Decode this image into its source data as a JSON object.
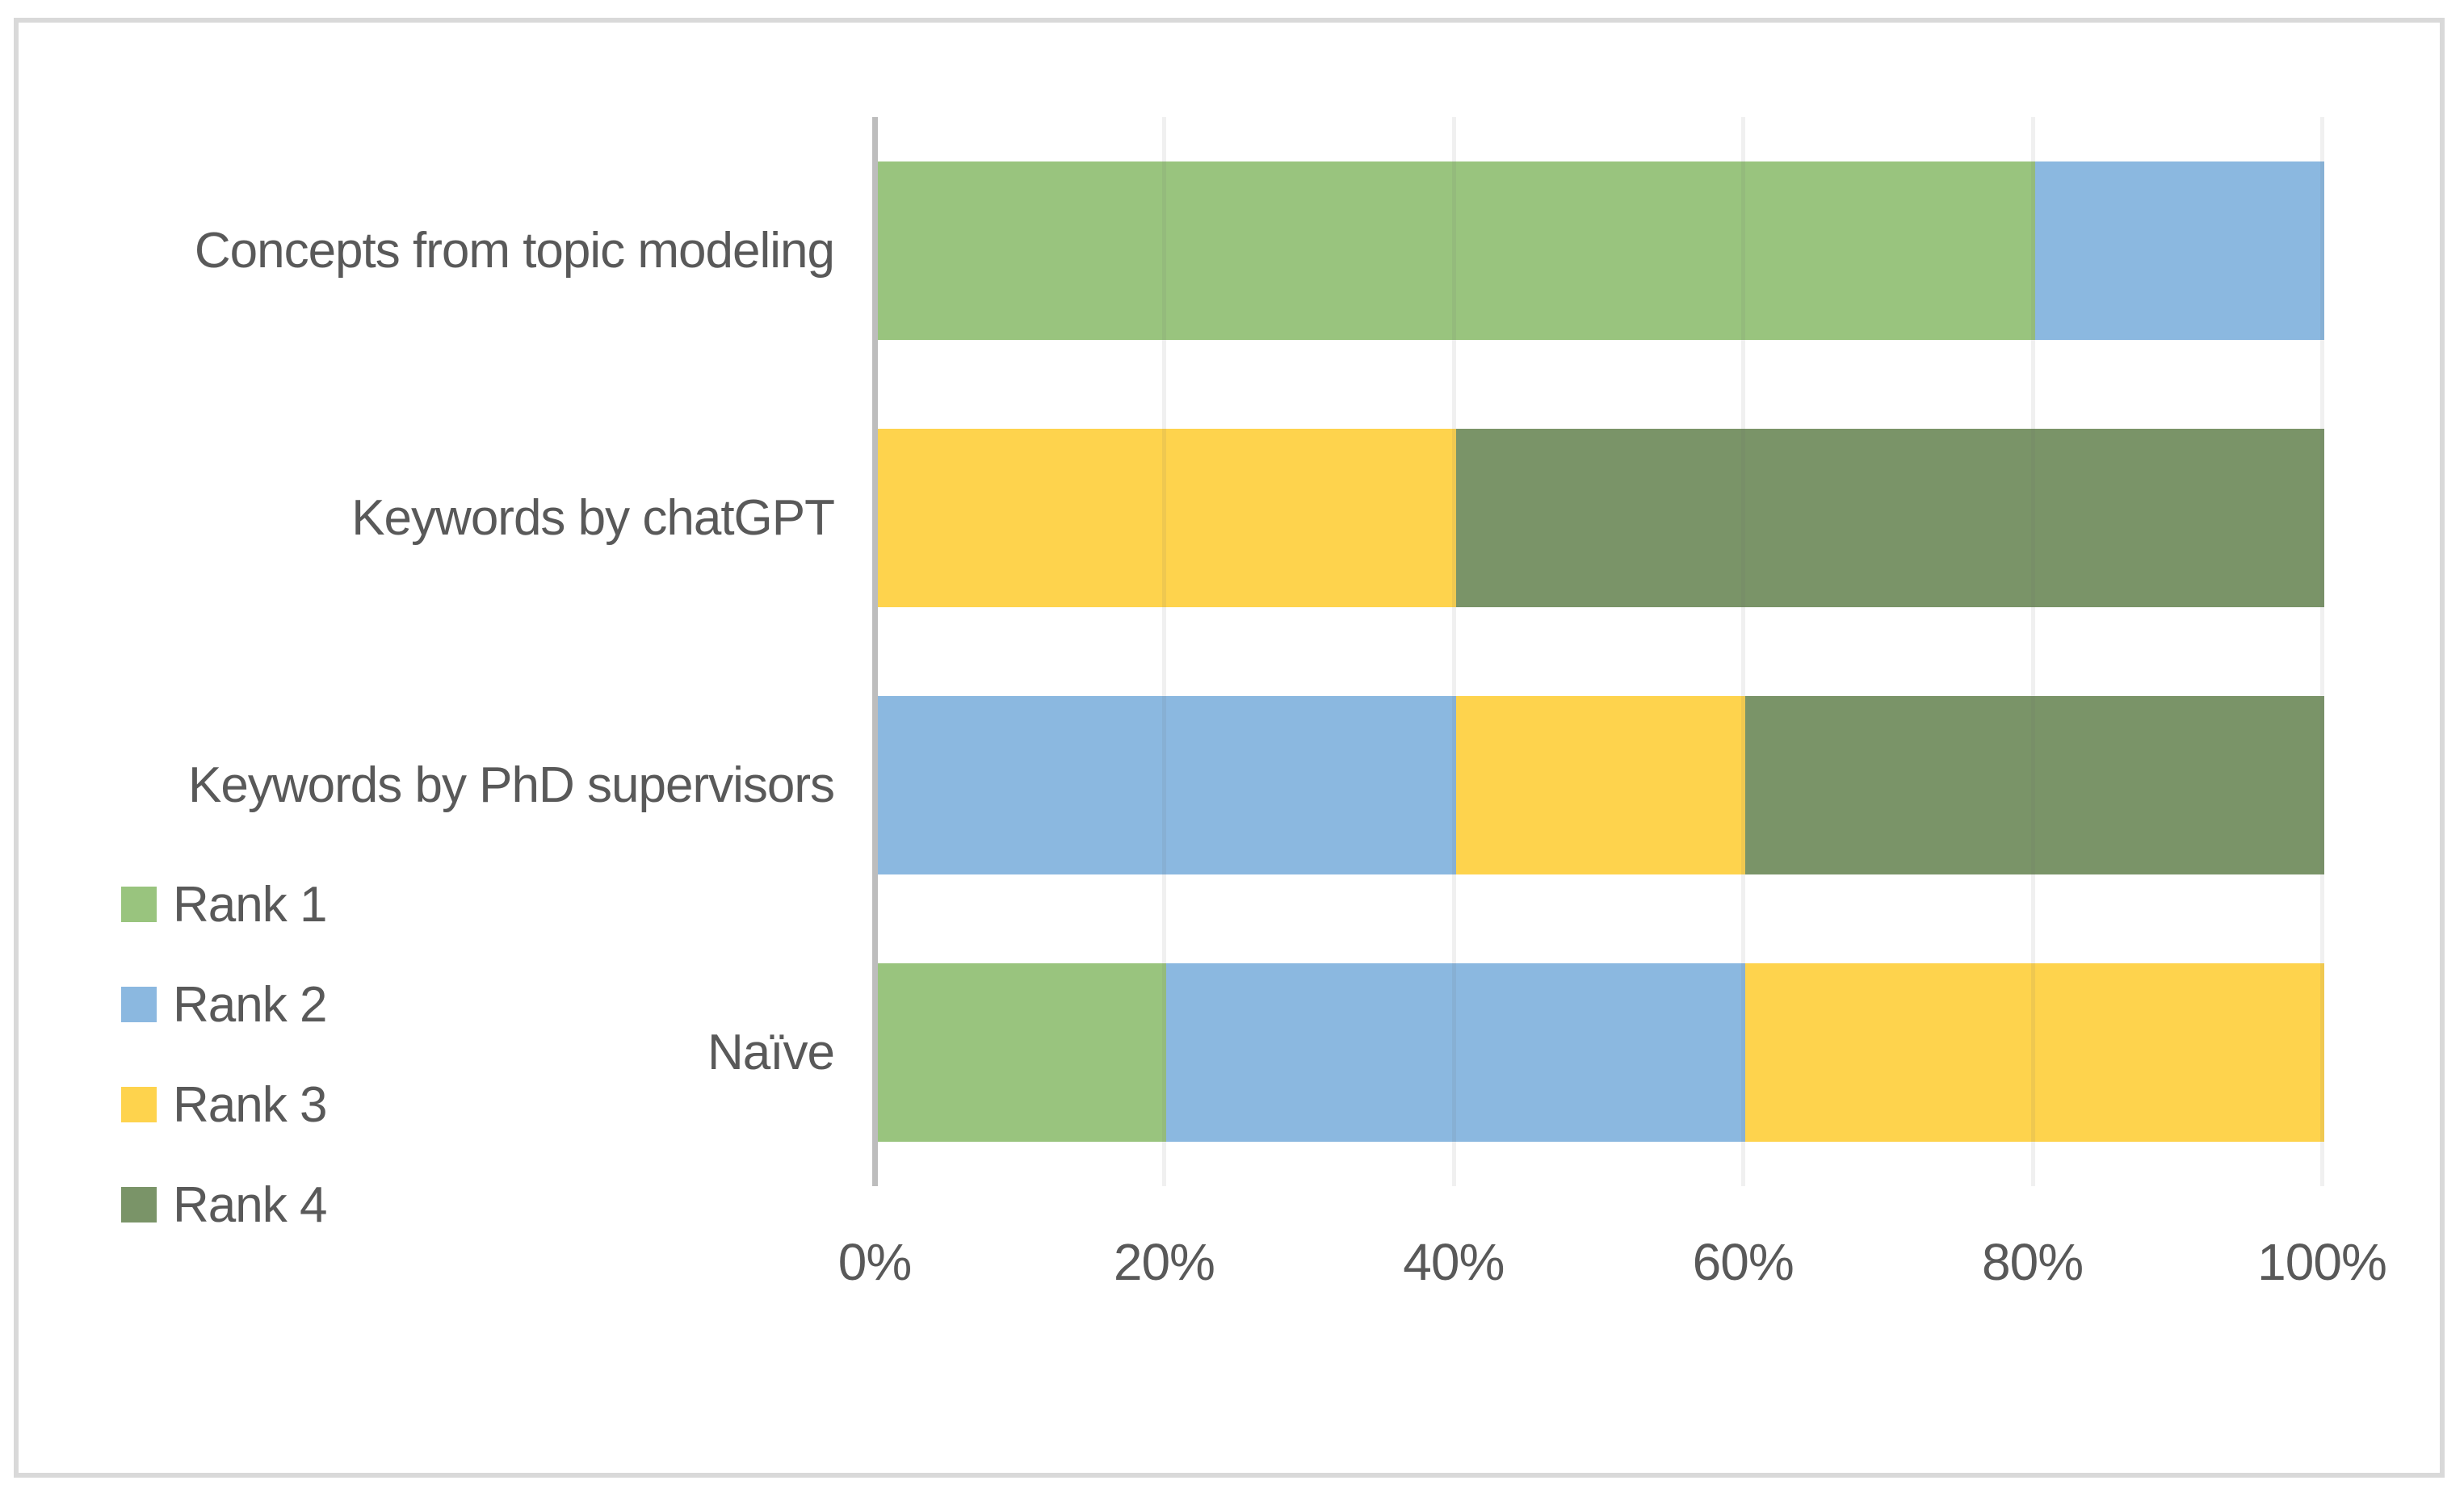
{
  "chart_data": {
    "type": "bar",
    "variant": "horizontal-stacked-100-percent",
    "title": "",
    "categories": [
      "Concepts from topic modeling",
      "Keywords by chatGPT",
      "Keywords by PhD supervisors",
      "Naïve"
    ],
    "series": [
      {
        "name": "Rank 1",
        "color": "#99C47E",
        "values": [
          80,
          0,
          0,
          20
        ]
      },
      {
        "name": "Rank 2",
        "color": "#8BB8E0",
        "values": [
          20,
          0,
          40,
          40
        ]
      },
      {
        "name": "Rank 3",
        "color": "#FED34D",
        "values": [
          0,
          40,
          20,
          40
        ]
      },
      {
        "name": "Rank 4",
        "color": "#7A9468",
        "values": [
          0,
          60,
          40,
          0
        ]
      }
    ],
    "x_axis": {
      "min": 0,
      "max": 100,
      "tick_labels": [
        "0%",
        "20%",
        "40%",
        "60%",
        "80%",
        "100%"
      ]
    },
    "legend": {
      "position": "left-bottom",
      "orientation": "vertical",
      "entries": [
        "Rank 1",
        "Rank 2",
        "Rank 3",
        "Rank 4"
      ]
    },
    "grid": true
  },
  "colors": {
    "frame_border": "#D9D9D9",
    "axis_line": "#BDBDBD",
    "text": "#595959",
    "background": "#FFFFFF"
  }
}
